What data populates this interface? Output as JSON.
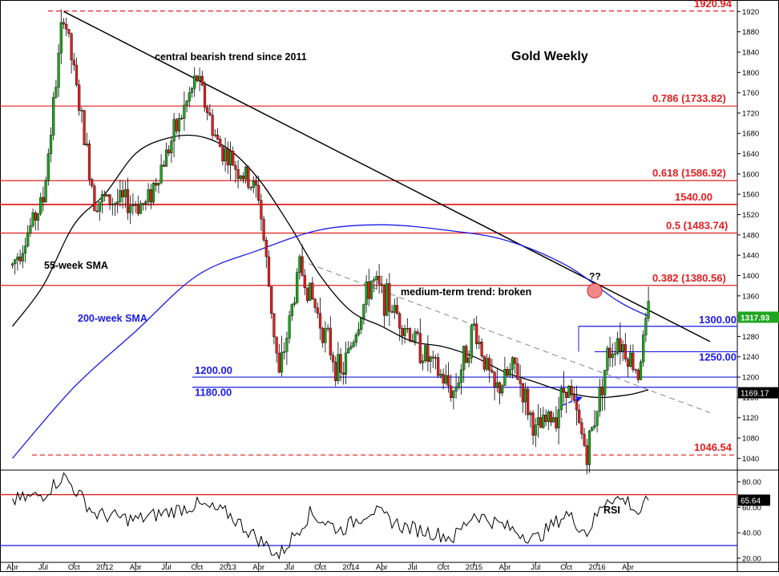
{
  "chart_data": [
    {
      "type": "candlestick",
      "title": "Gold Weekly",
      "ylim": [
        1020,
        1930
      ],
      "yticks": [
        1040,
        1080,
        1120,
        1160,
        1200,
        1240,
        1280,
        1320,
        1360,
        1400,
        1440,
        1480,
        1520,
        1560,
        1600,
        1640,
        1680,
        1720,
        1760,
        1800,
        1840,
        1880,
        1920
      ],
      "xticks": [
        "Apr",
        "Jul",
        "Oct",
        "2012",
        "Apr",
        "Jul",
        "Oct",
        "2013",
        "Apr",
        "Jul",
        "Oct",
        "2014",
        "Apr",
        "Jul",
        "Oct",
        "2015",
        "Apr",
        "Jul",
        "Oct",
        "2016",
        "Apr"
      ],
      "series": [
        {
          "name": "Gold",
          "color": "#1fa51f",
          "down_color": "#e0201f",
          "x": [
            "2011-04",
            "2011-07",
            "2011-09",
            "2011-12",
            "2012-05",
            "2012-10",
            "2012-12",
            "2013-04",
            "2013-06",
            "2013-08",
            "2013-12",
            "2014-03",
            "2014-06",
            "2014-09",
            "2014-11",
            "2015-01",
            "2015-03",
            "2015-05",
            "2015-07",
            "2015-09",
            "2015-10",
            "2015-12",
            "2016-02",
            "2016-03",
            "2016-05",
            "2016-06"
          ],
          "y": [
            1420,
            1550,
            1920,
            1550,
            1540,
            1790,
            1660,
            1560,
            1200,
            1420,
            1200,
            1390,
            1310,
            1220,
            1170,
            1300,
            1170,
            1220,
            1090,
            1130,
            1190,
            1050,
            1240,
            1280,
            1210,
            1330
          ]
        },
        {
          "name": "55-week SMA",
          "color": "#000000",
          "x": [
            "2011-04",
            "2011-07",
            "2011-10",
            "2012-01",
            "2012-04",
            "2012-07",
            "2012-10",
            "2013-01",
            "2013-04",
            "2013-07",
            "2013-10",
            "2014-01",
            "2014-04",
            "2014-07",
            "2014-10",
            "2015-01",
            "2015-04",
            "2015-07",
            "2015-10",
            "2016-01",
            "2016-04",
            "2016-06"
          ],
          "y": [
            1300,
            1380,
            1500,
            1560,
            1640,
            1670,
            1675,
            1650,
            1590,
            1500,
            1400,
            1330,
            1300,
            1270,
            1260,
            1240,
            1210,
            1190,
            1170,
            1160,
            1165,
            1175
          ]
        },
        {
          "name": "200-week SMA",
          "color": "#1a1ae6",
          "x": [
            "2011-04",
            "2011-10",
            "2012-04",
            "2012-10",
            "2013-04",
            "2013-10",
            "2014-04",
            "2014-10",
            "2015-04",
            "2015-10",
            "2016-03",
            "2016-06"
          ],
          "y": [
            1040,
            1180,
            1290,
            1400,
            1450,
            1490,
            1500,
            1490,
            1470,
            1420,
            1350,
            1320
          ]
        }
      ],
      "levels": [
        {
          "label": "1920.94",
          "value": 1920.94,
          "color": "#e0201f",
          "style": "dashed"
        },
        {
          "label": "0.786 (1733.82)",
          "value": 1733.82,
          "color": "#e0201f",
          "style": "solid"
        },
        {
          "label": "0.618 (1586.92)",
          "value": 1586.92,
          "color": "#e0201f",
          "style": "solid"
        },
        {
          "label": "1540.00",
          "value": 1540.0,
          "color": "#e0201f",
          "style": "solid-bold"
        },
        {
          "label": "0.5 (1483.74)",
          "value": 1483.74,
          "color": "#e0201f",
          "style": "solid"
        },
        {
          "label": "0.382 (1380.56)",
          "value": 1380.56,
          "color": "#e0201f",
          "style": "solid"
        },
        {
          "label": "1300.00",
          "value": 1300.0,
          "color": "#1a1ae6",
          "style": "solid"
        },
        {
          "label": "1250.00",
          "value": 1250.0,
          "color": "#1a1ae6",
          "style": "solid"
        },
        {
          "label": "1200.00",
          "value": 1200.0,
          "color": "#1a1ae6",
          "style": "solid"
        },
        {
          "label": "1180.00",
          "value": 1180.0,
          "color": "#1a1ae6",
          "style": "solid"
        },
        {
          "label": "1046.54",
          "value": 1046.54,
          "color": "#e0201f",
          "style": "dashed"
        }
      ],
      "trendlines": [
        {
          "label": "central bearish trend since 2011",
          "color": "#000000",
          "style": "solid",
          "x": [
            "2011-09",
            "2016-12"
          ],
          "y": [
            1920,
            1270
          ]
        },
        {
          "label": "medium-term trend: broken",
          "color": "#888888",
          "style": "dashed",
          "x": [
            "2013-08",
            "2016-12"
          ],
          "y": [
            1430,
            1130
          ]
        }
      ],
      "annotations": [
        "55-week SMA",
        "200-week SMA",
        "??"
      ],
      "current_values": [
        {
          "label": "1317.93",
          "value": 1317.93,
          "color": "#1fa51f"
        },
        {
          "label": "1169.17",
          "value": 1169.17,
          "color": "#000000"
        }
      ]
    },
    {
      "type": "line",
      "ylabel": "RSI",
      "ylim": [
        18,
        88
      ],
      "yticks": [
        20.0,
        40.0,
        60.0,
        80.0
      ],
      "levels": [
        70,
        30
      ],
      "series": [
        {
          "name": "RSI",
          "color": "#000000",
          "x": [
            "2011-04",
            "2011-07",
            "2011-09",
            "2011-12",
            "2012-04",
            "2012-10",
            "2013-01",
            "2013-04",
            "2013-06",
            "2013-09",
            "2013-12",
            "2014-03",
            "2014-06",
            "2014-09",
            "2014-11",
            "2015-01",
            "2015-04",
            "2015-07",
            "2015-10",
            "2015-12",
            "2016-02",
            "2016-04",
            "2016-05",
            "2016-06"
          ],
          "y": [
            65,
            70,
            85,
            55,
            50,
            62,
            55,
            35,
            22,
            55,
            42,
            58,
            45,
            40,
            36,
            55,
            45,
            35,
            55,
            40,
            68,
            65,
            55,
            65.64
          ]
        }
      ],
      "current_value": {
        "label": "65.64",
        "value": 65.64
      }
    }
  ]
}
